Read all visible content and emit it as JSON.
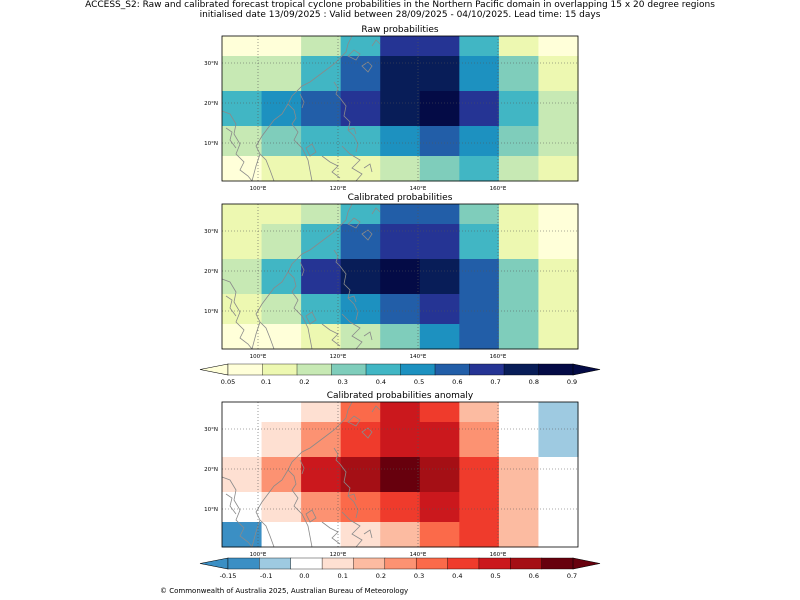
{
  "header": {
    "line1": "ACCESS_S2: Raw and calibrated forecast tropical cyclone probabilities in the Northern Pacific domain in overlapping 15 x 20 degree regions",
    "line2": "initialised date 13/09/2025 :  Valid between 28/09/2025 - 04/10/2025. Lead time: 15 days"
  },
  "footer": "© Commonwealth of Australia 2025, Australian Bureau of Meteorology",
  "colors": {
    "prob": [
      "#ffffd9",
      "#edf8b1",
      "#c7e9b4",
      "#7fcdbb",
      "#41b6c4",
      "#1d91c0",
      "#225ea8",
      "#253494",
      "#081d58",
      "#040b46"
    ],
    "anom": [
      "#3b8fc4",
      "#9ecae1",
      "#ffffff",
      "#fee0d2",
      "#fcbba1",
      "#fc9272",
      "#fb6a4a",
      "#ef3b2c",
      "#cb181d",
      "#a50f15",
      "#67000d"
    ],
    "coast": "#8a8a8a",
    "grid": "#555555"
  },
  "chart_data": [
    {
      "type": "heatmap",
      "title": "Raw probabilities",
      "x_ticks": [
        "100°E",
        "120°E",
        "140°E",
        "160°E"
      ],
      "y_ticks": [
        "30°N",
        "20°N",
        "10°N"
      ],
      "rows": [
        [
          0,
          0,
          2,
          4,
          7,
          7,
          4,
          1,
          0
        ],
        [
          2,
          2,
          4,
          6,
          8,
          8,
          5,
          3,
          1
        ],
        [
          4,
          5,
          6,
          7,
          8,
          9,
          7,
          4,
          2
        ],
        [
          2,
          3,
          4,
          4,
          5,
          6,
          5,
          3,
          2
        ],
        [
          0,
          1,
          1,
          1,
          2,
          3,
          4,
          2,
          1
        ]
      ]
    },
    {
      "type": "heatmap",
      "title": "Calibrated probabilities",
      "x_ticks": [
        "100°E",
        "120°E",
        "140°E",
        "160°E"
      ],
      "y_ticks": [
        "30°N",
        "20°N",
        "10°N"
      ],
      "rows": [
        [
          1,
          1,
          2,
          4,
          6,
          6,
          3,
          1,
          0
        ],
        [
          1,
          2,
          4,
          6,
          7,
          7,
          4,
          1,
          0
        ],
        [
          2,
          4,
          7,
          8,
          9,
          8,
          6,
          3,
          1
        ],
        [
          1,
          2,
          4,
          5,
          6,
          7,
          6,
          3,
          1
        ],
        [
          0,
          0,
          1,
          2,
          3,
          5,
          6,
          3,
          1
        ]
      ]
    },
    {
      "type": "heatmap",
      "title": "Calibrated probabilities anomaly",
      "x_ticks": [
        "100°E",
        "120°E",
        "140°E",
        "160°E"
      ],
      "y_ticks": [
        "30°N",
        "20°N",
        "10°N"
      ],
      "rows": [
        [
          2,
          2,
          3,
          6,
          8,
          7,
          4,
          2,
          1
        ],
        [
          2,
          3,
          5,
          7,
          8,
          8,
          5,
          2,
          1
        ],
        [
          3,
          5,
          8,
          9,
          10,
          9,
          7,
          4,
          2
        ],
        [
          2,
          3,
          5,
          6,
          7,
          8,
          7,
          4,
          2
        ],
        [
          0,
          2,
          2,
          3,
          4,
          6,
          7,
          4,
          2
        ]
      ]
    }
  ],
  "colorbars": {
    "prob_labels": [
      "0.05",
      "0.1",
      "0.2",
      "0.3",
      "0.4",
      "0.5",
      "0.6",
      "0.7",
      "0.8",
      "0.9"
    ],
    "anom_labels": [
      "-0.15",
      "-0.1",
      "0.0",
      "0.1",
      "0.2",
      "0.3",
      "0.4",
      "0.5",
      "0.6",
      "0.7"
    ]
  }
}
